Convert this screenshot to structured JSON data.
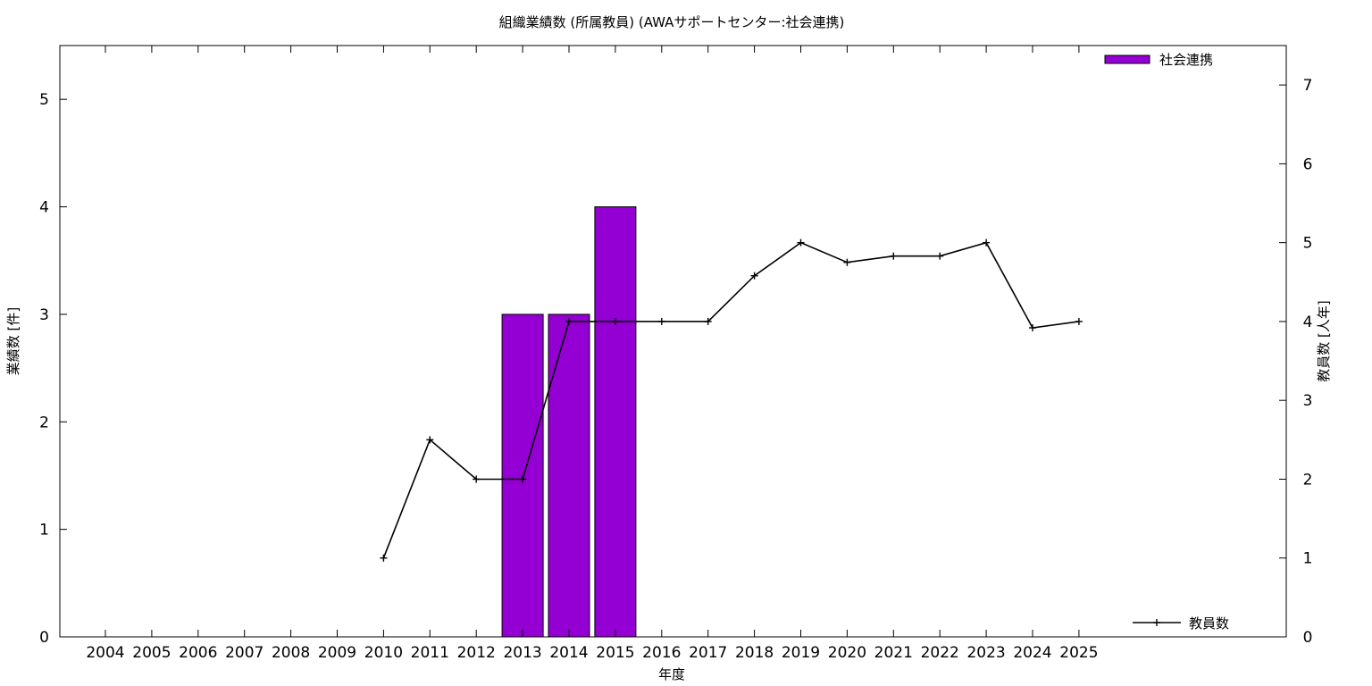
{
  "chart_data": {
    "type": "bar",
    "title": "組織業績数 (所属教員) (AWAサポートセンター:社会連携)",
    "xlabel": "年度",
    "ylabel_left": "業績数 [件]",
    "ylabel_right": "教員数 [人年]",
    "categories": [
      "2004",
      "2005",
      "2006",
      "2007",
      "2008",
      "2009",
      "2010",
      "2011",
      "2012",
      "2013",
      "2014",
      "2015",
      "2016",
      "2017",
      "2018",
      "2019",
      "2020",
      "2021",
      "2022",
      "2023",
      "2024",
      "2025"
    ],
    "ylim_left": [
      0,
      5.5
    ],
    "yticks_left": [
      0,
      1,
      2,
      3,
      4,
      5
    ],
    "ylim_right": [
      0,
      7.5
    ],
    "yticks_right": [
      0,
      1,
      2,
      3,
      4,
      5,
      6,
      7
    ],
    "series": [
      {
        "name": "社会連携",
        "kind": "bar",
        "axis": "left",
        "color": "#9400d3",
        "values": [
          0,
          0,
          0,
          0,
          0,
          0,
          0,
          0,
          0,
          3,
          3,
          4,
          0,
          0,
          0,
          0,
          0,
          0,
          0,
          0,
          0,
          0
        ]
      },
      {
        "name": "教員数",
        "kind": "line",
        "axis": "right",
        "color": "#000000",
        "values": [
          null,
          null,
          null,
          null,
          null,
          null,
          1.0,
          2.5,
          2.0,
          2.0,
          4.0,
          4.0,
          4.0,
          4.0,
          4.58,
          5.0,
          4.75,
          4.83,
          4.83,
          5.0,
          3.92,
          4.0
        ]
      }
    ],
    "legend_bar_position": "top-right",
    "legend_line_position": "bottom-right",
    "grid": false
  }
}
